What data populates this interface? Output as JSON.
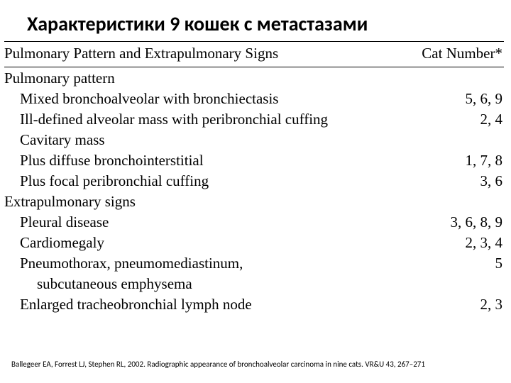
{
  "title": "Характеристики 9 кошек с метастазами",
  "title_fontsize": 28,
  "table_font": "Times New Roman, Times, serif",
  "table_fontsize": 21,
  "columns": {
    "left": "Pulmonary Pattern and Extrapulmonary Signs",
    "right": "Cat Number*"
  },
  "sections": [
    {
      "heading": "Pulmonary pattern",
      "rows": [
        {
          "label": "Mixed bronchoalveolar with bronchiectasis",
          "value": "5, 6, 9",
          "indent": 1
        },
        {
          "label": "Ill-defined alveolar mass with peribronchial cuffing",
          "value": "2, 4",
          "indent": 1
        },
        {
          "label": "Cavitary mass",
          "value": "",
          "indent": 1
        },
        {
          "label": "Plus diffuse bronchointerstitial",
          "value": "1, 7, 8",
          "indent": 1
        },
        {
          "label": "Plus focal peribronchial cuffing",
          "value": "3, 6",
          "indent": 1
        }
      ]
    },
    {
      "heading": "Extrapulmonary signs",
      "rows": [
        {
          "label": "Pleural disease",
          "value": "3, 6, 8, 9",
          "indent": 1
        },
        {
          "label": "Cardiomegaly",
          "value": "2, 3, 4",
          "indent": 1
        },
        {
          "label": "Pneumothorax, pneumomediastinum,",
          "value": "5",
          "indent": 1
        },
        {
          "label": "subcutaneous emphysema",
          "value": "",
          "indent": 2
        },
        {
          "label": "Enlarged tracheobronchial lymph node",
          "value": "2, 3",
          "indent": 1
        }
      ]
    }
  ],
  "citation": "Ballegeer EA, Forrest LJ, Stephen RL, 2002. Radiographic appearance of bronchoalveolar carcinoma in nine cats. VR&U 43, 267–271",
  "citation_fontsize": 11,
  "colors": {
    "text": "#000000",
    "bg": "#ffffff",
    "rule": "#000000"
  }
}
